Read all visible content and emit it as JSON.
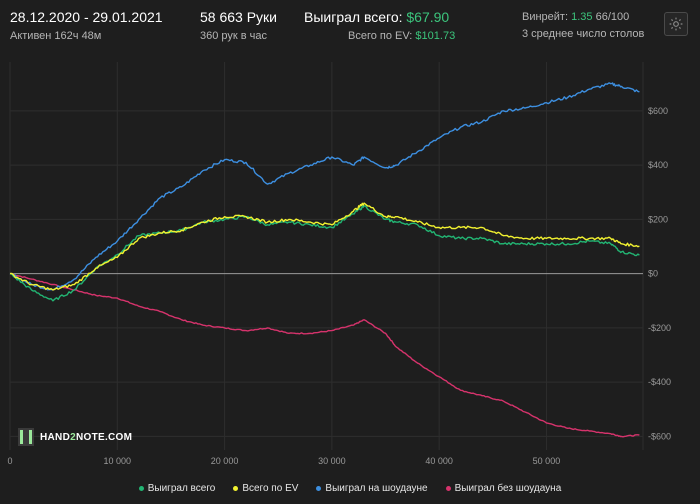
{
  "header": {
    "date_range": "28.12.2020 - 29.01.2021",
    "active": "Активен 162ч 48м",
    "hands": "58 663 Руки",
    "hands_per_hour": "360 рук в час",
    "won_total_label": "Выиграл всего:",
    "won_total_value": "$67.90",
    "ev_total_label": "Всего по EV:",
    "ev_total_value": "$101.73",
    "winrate_label": "Винрейт:",
    "winrate_value": "1.35",
    "winrate_suffix": "66/100",
    "avg_tables": "3 среднее число столов",
    "settings_icon": "gear-icon"
  },
  "logo": {
    "text_a": "HAND",
    "text_b": "2",
    "text_c": "NOTE.COM"
  },
  "colors": {
    "background": "#1e1e1e",
    "grid": "#2e2e2e",
    "zero_line": "#9a9a9a",
    "won_total": "#22b573",
    "ev_total": "#f2f230",
    "showdown": "#3d8fe0",
    "no_showdown": "#d6336c"
  },
  "chart_data": {
    "type": "line",
    "title": "",
    "xlabel": "",
    "ylabel": "",
    "xlim": [
      0,
      59000
    ],
    "ylim": [
      -650,
      780
    ],
    "x_ticks": [
      0,
      10000,
      20000,
      30000,
      40000,
      50000
    ],
    "x_tick_labels": [
      "0",
      "10 000",
      "20 000",
      "30 000",
      "40 000",
      "50 000"
    ],
    "y_ticks": [
      600,
      400,
      200,
      0,
      -200,
      -400,
      -600
    ],
    "y_tick_labels": [
      "$600",
      "$400",
      "$200",
      "$0",
      "-$200",
      "-$400",
      "-$600"
    ],
    "grid": true,
    "legend_position": "bottom",
    "x": [
      0,
      2000,
      4000,
      6000,
      8000,
      10000,
      12000,
      14000,
      16000,
      18000,
      20000,
      22000,
      24000,
      26000,
      28000,
      30000,
      32000,
      33000,
      35000,
      36000,
      38000,
      40000,
      42000,
      44000,
      46000,
      48000,
      50000,
      52000,
      54000,
      56000,
      57000,
      58663
    ],
    "series": [
      {
        "name": "Выиграл всего",
        "color": "#22b573",
        "values": [
          0,
          -60,
          -100,
          -60,
          20,
          70,
          140,
          150,
          160,
          190,
          200,
          210,
          180,
          190,
          180,
          170,
          220,
          250,
          200,
          190,
          180,
          140,
          130,
          130,
          110,
          110,
          110,
          110,
          120,
          110,
          80,
          68
        ]
      },
      {
        "name": "Всего по EV",
        "color": "#f2f230",
        "values": [
          0,
          -40,
          -60,
          -40,
          20,
          60,
          130,
          150,
          160,
          190,
          210,
          210,
          190,
          200,
          190,
          180,
          230,
          260,
          210,
          210,
          190,
          170,
          170,
          170,
          140,
          130,
          130,
          130,
          130,
          130,
          110,
          102
        ]
      },
      {
        "name": "Выиграл на шоудауне",
        "color": "#3d8fe0",
        "values": [
          0,
          -40,
          -60,
          -20,
          60,
          120,
          200,
          280,
          320,
          380,
          420,
          410,
          330,
          370,
          400,
          430,
          400,
          430,
          390,
          400,
          450,
          500,
          540,
          560,
          600,
          610,
          630,
          650,
          680,
          700,
          690,
          670
        ]
      },
      {
        "name": "Выиграл без шоудауна",
        "color": "#d6336c",
        "values": [
          0,
          -20,
          -40,
          -60,
          -80,
          -90,
          -120,
          -140,
          -170,
          -190,
          -200,
          -210,
          -200,
          -220,
          -220,
          -210,
          -190,
          -170,
          -220,
          -270,
          -330,
          -380,
          -430,
          -450,
          -470,
          -510,
          -550,
          -570,
          -580,
          -590,
          -600,
          -595
        ]
      }
    ]
  }
}
